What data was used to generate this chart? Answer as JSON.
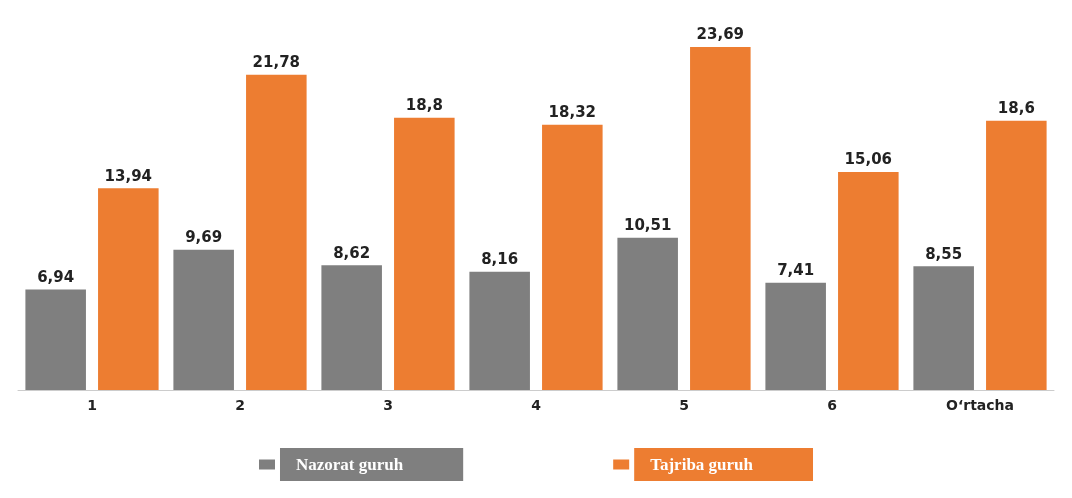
{
  "chart_data": {
    "type": "bar",
    "categories": [
      "1",
      "2",
      "3",
      "4",
      "5",
      "6",
      "O‘rtacha"
    ],
    "series": [
      {
        "name": "Nazorat guruh",
        "color": "#7f7f7f",
        "values": [
          6.94,
          9.69,
          8.62,
          8.16,
          10.51,
          7.41,
          8.55
        ],
        "value_labels": [
          "6,94",
          "9,69",
          "8,62",
          "8,16",
          "10,51",
          "7,41",
          "8,55"
        ]
      },
      {
        "name": "Tajriba guruh",
        "color": "#ed7d31",
        "values": [
          13.94,
          21.78,
          18.8,
          18.32,
          23.69,
          15.06,
          18.6
        ],
        "value_labels": [
          "13,94",
          "21,78",
          "18,8",
          "18,32",
          "23,69",
          "15,06",
          "18,6"
        ]
      }
    ],
    "legend": "bottom",
    "grid": false
  }
}
